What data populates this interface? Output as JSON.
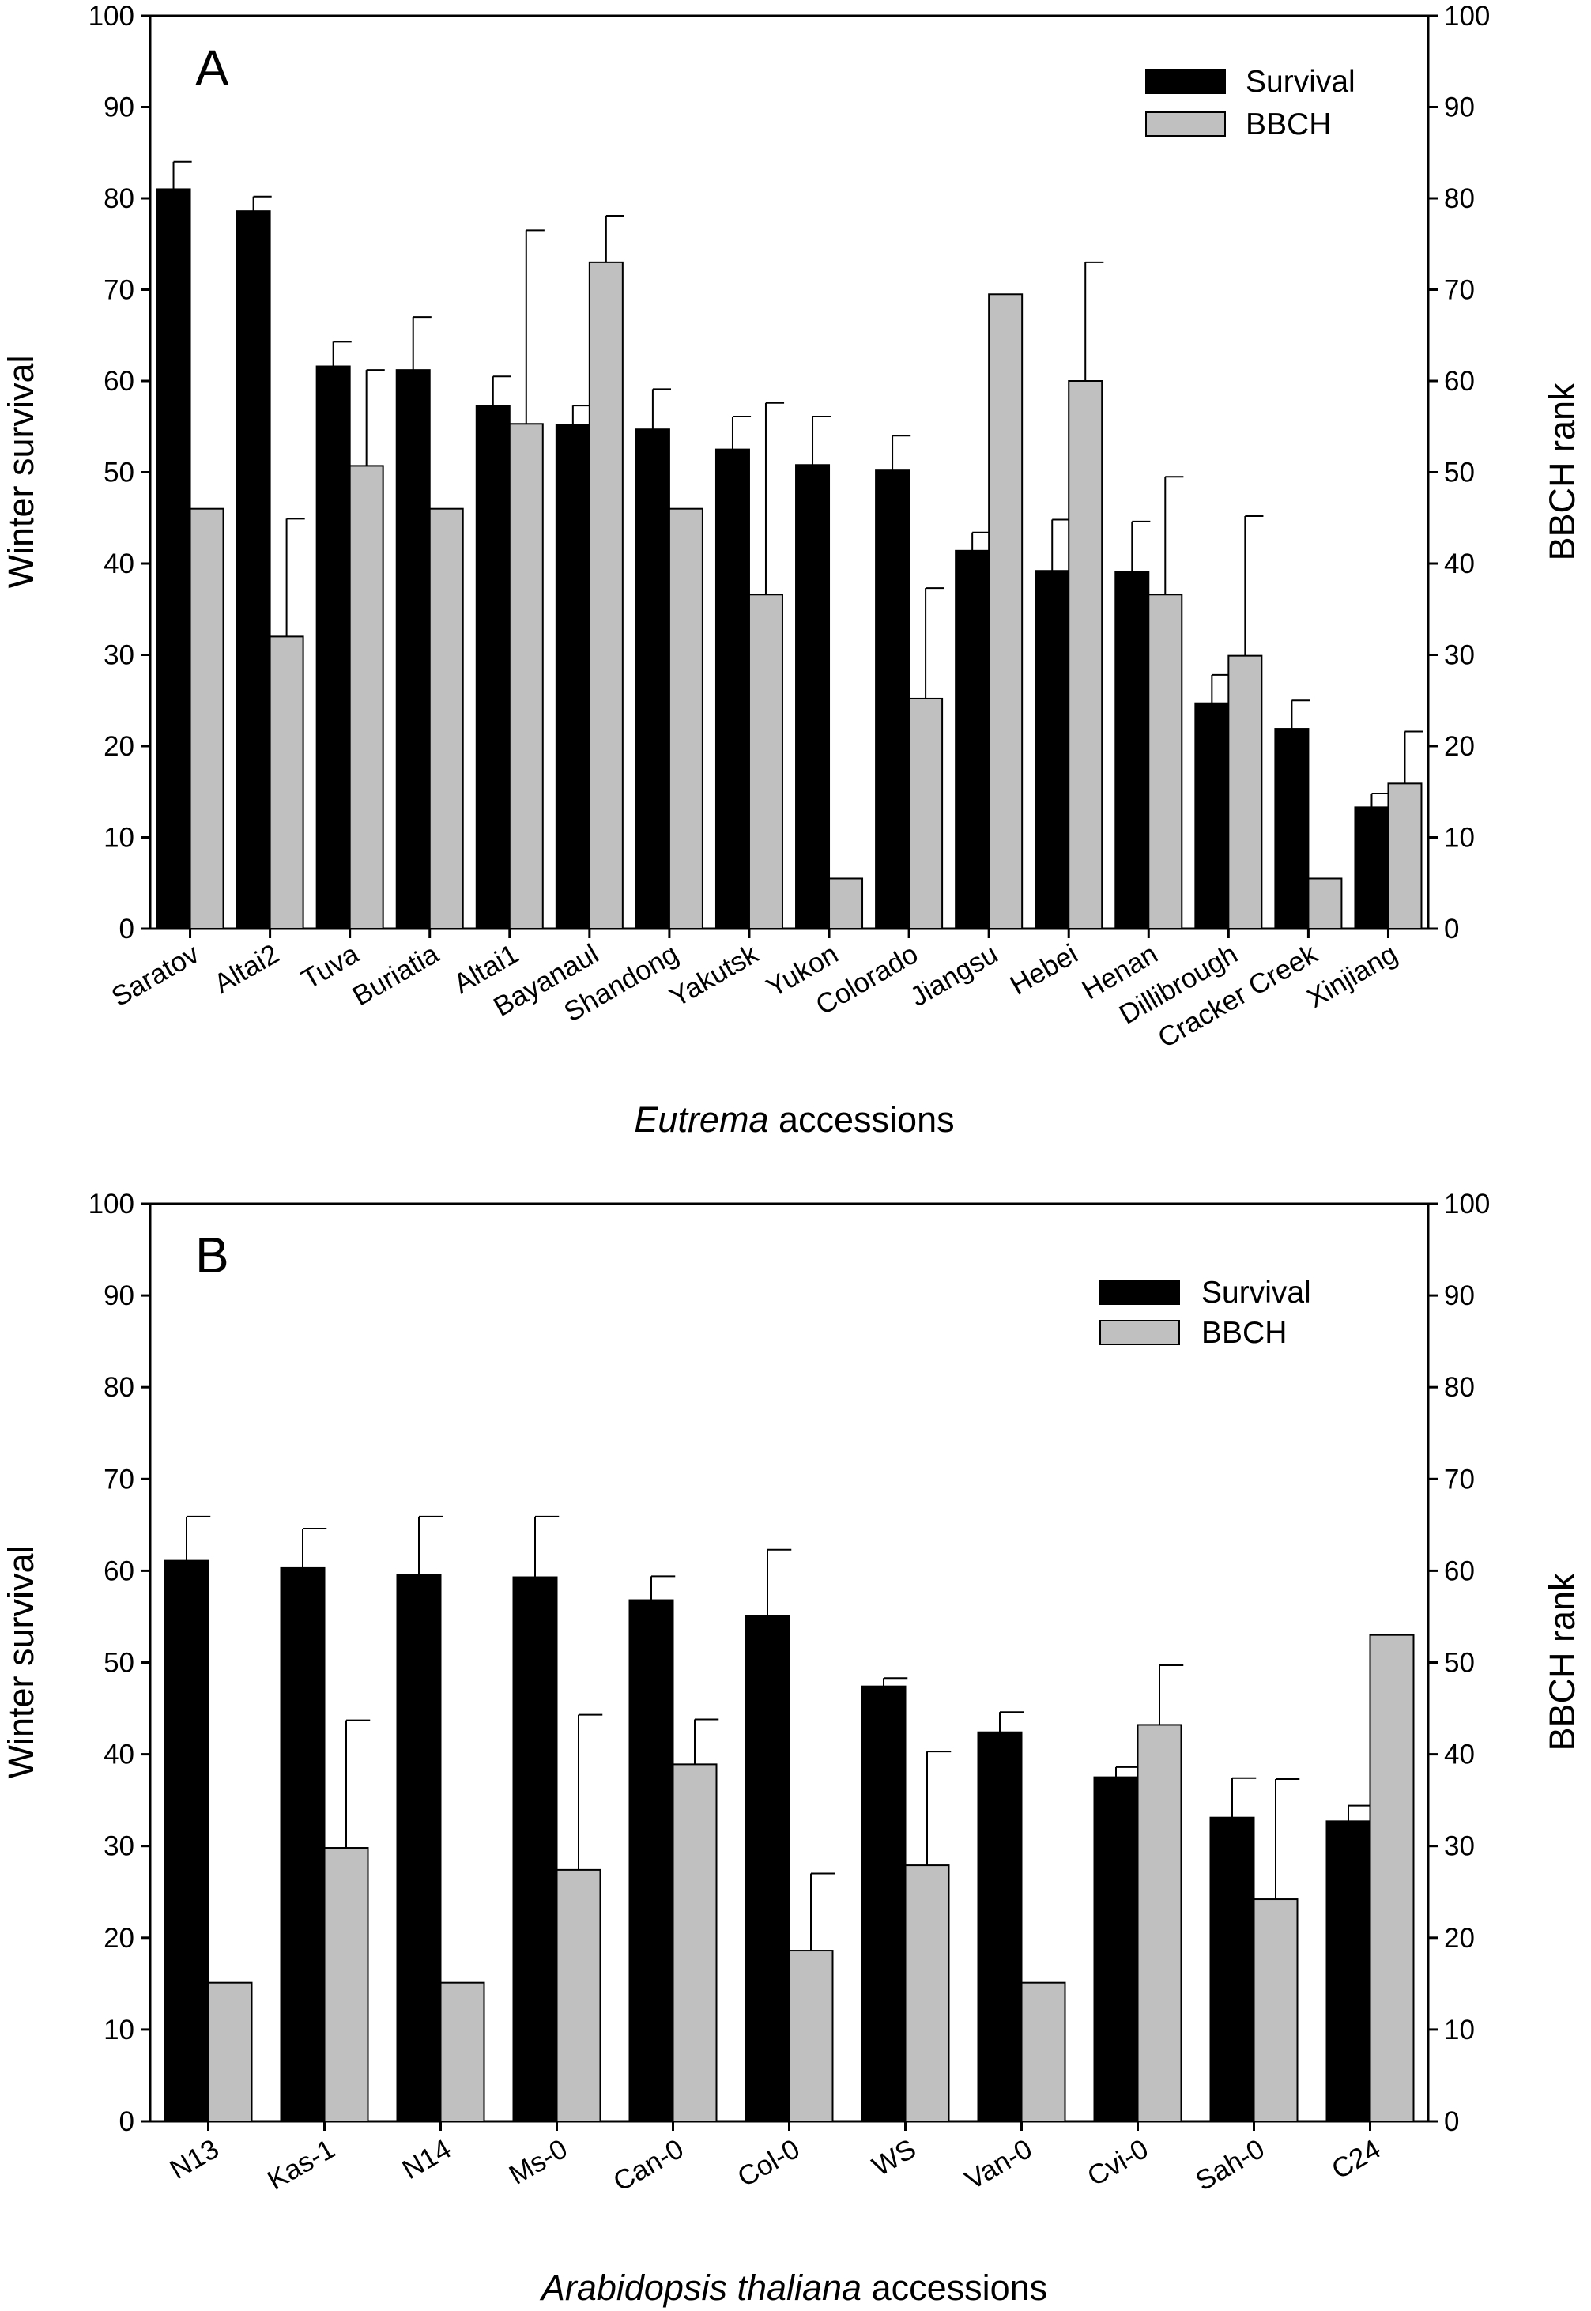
{
  "chart_data": [
    {
      "type": "bar",
      "panel_label": "A",
      "xlabel_italic": "Eutrema",
      "xlabel_rest": " accessions",
      "ylabel": "Winter survival",
      "y2label": "BBCH rank",
      "ylim": [
        0,
        100
      ],
      "y2lim": [
        0,
        100
      ],
      "yticks": [
        "0",
        "10",
        "20",
        "30",
        "40",
        "50",
        "60",
        "70",
        "80",
        "90",
        "100"
      ],
      "legend": [
        "Survival",
        "BBCH"
      ],
      "legend_position": "top-right",
      "categories": [
        "Saratov",
        "Altai2",
        "Tuva",
        "Buriatia",
        "Altai1",
        "Bayanaul",
        "Shandong",
        "Yakutsk",
        "Yukon",
        "Colorado",
        "Jiangsu",
        "Hebei",
        "Henan",
        "Dillibrough",
        "Cracker Creek",
        "Xinjiang"
      ],
      "series": [
        {
          "name": "Survival",
          "color": "#000000",
          "values": [
            81,
            78.6,
            61.6,
            61.2,
            57.3,
            55.2,
            54.7,
            52.5,
            50.8,
            50.2,
            41.4,
            39.2,
            39.1,
            24.7,
            21.9,
            13.3
          ],
          "errors": [
            3,
            1.6,
            2.7,
            5.8,
            3.2,
            2.1,
            4.4,
            3.6,
            5.3,
            3.8,
            2.0,
            5.6,
            5.5,
            3.1,
            3.1,
            1.5
          ]
        },
        {
          "name": "BBCH",
          "color": "#c0c0c0",
          "values": [
            46,
            32,
            50.7,
            46,
            55.3,
            73,
            46,
            36.6,
            5.5,
            25.2,
            69.5,
            60,
            36.6,
            29.9,
            5.5,
            15.9
          ],
          "errors": [
            0,
            12.9,
            10.5,
            0,
            21.2,
            5.1,
            0,
            21.0,
            0,
            12.1,
            0,
            13.0,
            12.9,
            15.3,
            0,
            5.7
          ]
        }
      ]
    },
    {
      "type": "bar",
      "panel_label": "B",
      "xlabel_italic": "Arabidopsis thaliana",
      "xlabel_rest": " accessions",
      "ylabel": "Winter survival",
      "y2label": "BBCH rank",
      "ylim": [
        0,
        100
      ],
      "y2lim": [
        0,
        100
      ],
      "yticks": [
        "0",
        "10",
        "20",
        "30",
        "40",
        "50",
        "60",
        "70",
        "80",
        "90",
        "100"
      ],
      "legend": [
        "Survival",
        "BBCH"
      ],
      "legend_position": "top-right",
      "categories": [
        "N13",
        "Kas-1",
        "N14",
        "Ms-0",
        "Can-0",
        "Col-0",
        "WS",
        "Van-0",
        "Cvi-0",
        "Sah-0",
        "C24"
      ],
      "series": [
        {
          "name": "Survival",
          "color": "#000000",
          "values": [
            61.1,
            60.3,
            59.6,
            59.3,
            56.8,
            55.1,
            47.4,
            42.4,
            37.5,
            33.1,
            32.7
          ],
          "errors": [
            4.8,
            4.3,
            6.3,
            6.6,
            2.6,
            7.2,
            0.9,
            2.2,
            1.1,
            4.3,
            1.7
          ]
        },
        {
          "name": "BBCH",
          "color": "#c0c0c0",
          "values": [
            15.1,
            29.8,
            15.1,
            27.4,
            38.9,
            18.6,
            27.9,
            15.1,
            43.2,
            24.2,
            53
          ],
          "errors": [
            0,
            13.9,
            0,
            16.9,
            4.9,
            8.4,
            12.4,
            0,
            6.5,
            13.1,
            0
          ]
        }
      ]
    }
  ]
}
